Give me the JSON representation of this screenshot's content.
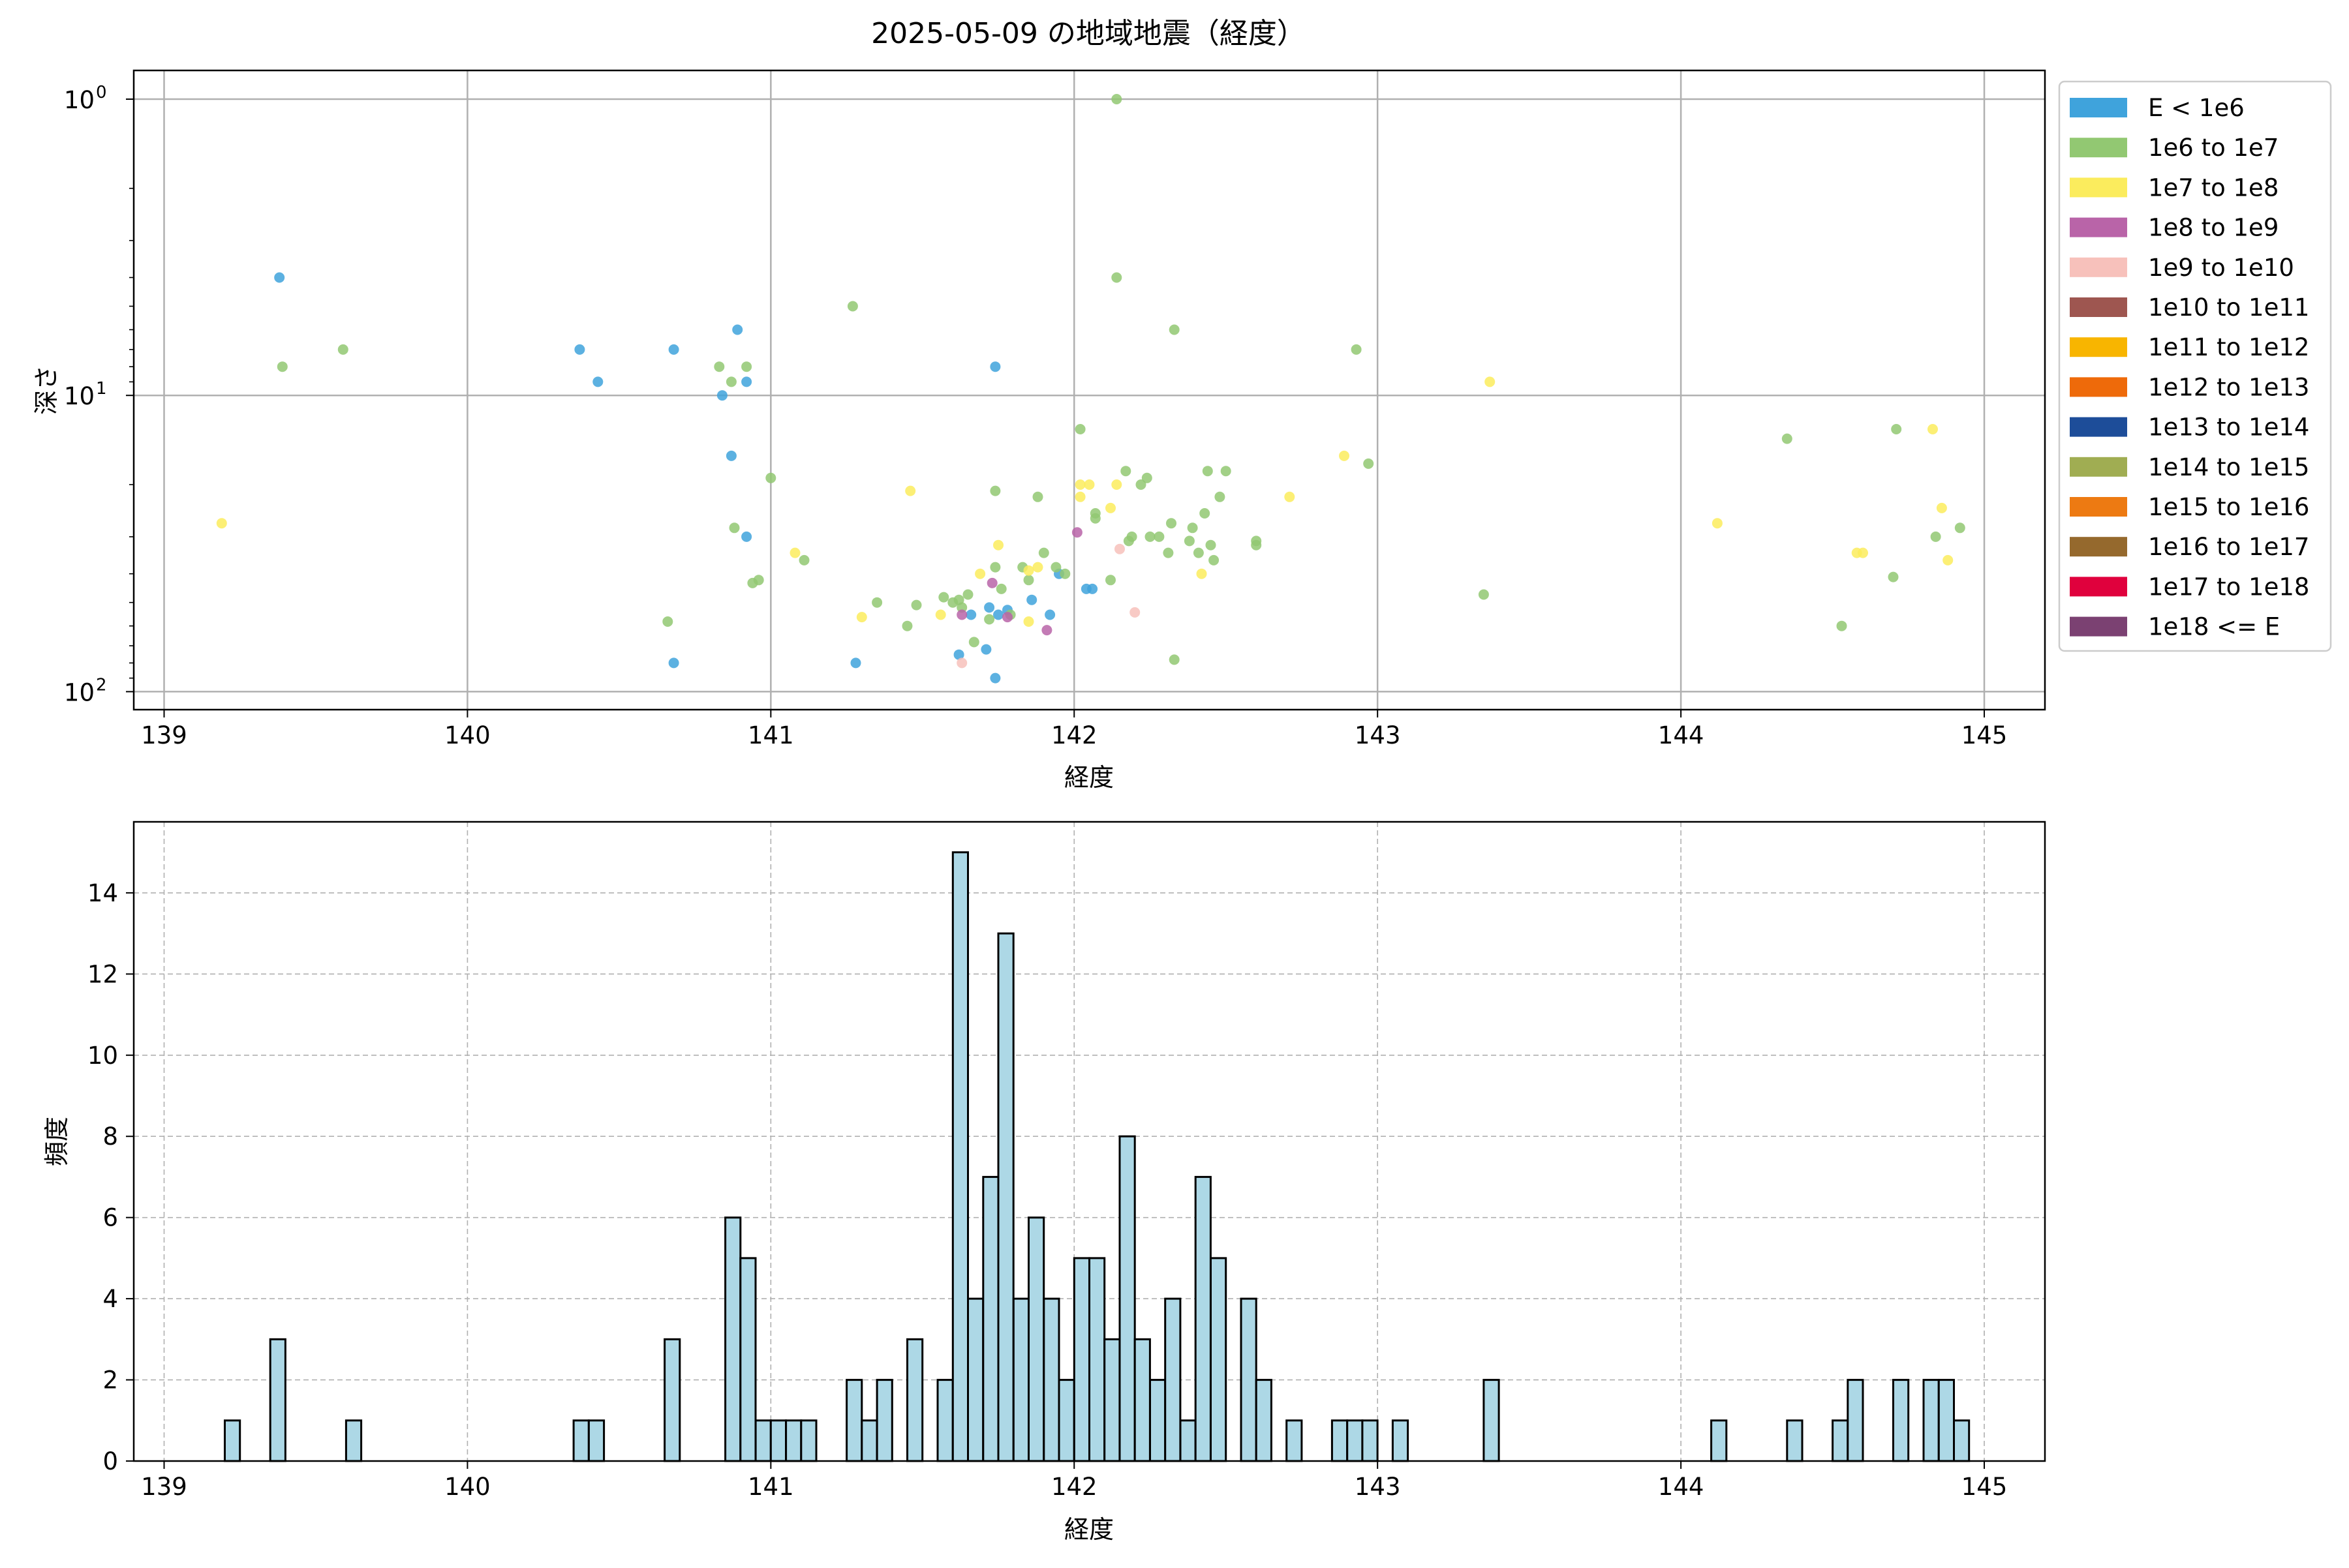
{
  "figure": {
    "title": "2025-05-09 の地域地震（経度）"
  },
  "chart_data": [
    {
      "type": "scatter",
      "title": "2025-05-09 の地域地震（経度）",
      "xlabel": "経度",
      "ylabel": "深さ",
      "xlim": [
        138.9,
        145.2
      ],
      "ylim": [
        115,
        0.8
      ],
      "yscale": "log",
      "yaxis_inverted": true,
      "grid": true,
      "legend_position": "outside-right",
      "x_ticks": [
        "139",
        "140",
        "141",
        "142",
        "143",
        "144",
        "145"
      ],
      "y_ticks": [
        {
          "value": 1,
          "base": "10",
          "exp": "0"
        },
        {
          "value": 10,
          "base": "10",
          "exp": "1"
        },
        {
          "value": 100,
          "base": "10",
          "exp": "2"
        }
      ],
      "legend": [
        {
          "label": "E < 1e6",
          "color": "#3fa3dc"
        },
        {
          "label": "1e6 to 1e7",
          "color": "#92c872"
        },
        {
          "label": "1e7 to 1e8",
          "color": "#fbec5d"
        },
        {
          "label": "1e8 to 1e9",
          "color": "#b964a8"
        },
        {
          "label": "1e9 to 1e10",
          "color": "#f7c1bb"
        },
        {
          "label": "1e10 to 1e11",
          "color": "#9e5650"
        },
        {
          "label": "1e11 to 1e12",
          "color": "#f8b500"
        },
        {
          "label": "1e12 to 1e13",
          "color": "#ee6a0a"
        },
        {
          "label": "1e13 to 1e14",
          "color": "#1d4d99"
        },
        {
          "label": "1e14 to 1e15",
          "color": "#a0ad52"
        },
        {
          "label": "1e15 to 1e16",
          "color": "#ed7a12"
        },
        {
          "label": "1e16 to 1e17",
          "color": "#95692d"
        },
        {
          "label": "1e17 to 1e18",
          "color": "#e0013d"
        },
        {
          "label": "1e18 <= E",
          "color": "#7b4172"
        }
      ],
      "series": [
        {
          "name": "E < 1e6",
          "color": "#3fa3dc",
          "points": [
            [
              139.38,
              4
            ],
            [
              140.37,
              7
            ],
            [
              140.43,
              9
            ],
            [
              140.68,
              7
            ],
            [
              140.89,
              6
            ],
            [
              140.92,
              9
            ],
            [
              140.84,
              10
            ],
            [
              140.87,
              16
            ],
            [
              140.92,
              30
            ],
            [
              140.68,
              80
            ],
            [
              141.28,
              80
            ],
            [
              141.62,
              75
            ],
            [
              141.74,
              90
            ],
            [
              141.74,
              8
            ],
            [
              141.66,
              55
            ],
            [
              141.72,
              52
            ],
            [
              141.78,
              53
            ],
            [
              141.86,
              49
            ],
            [
              141.95,
              40
            ],
            [
              141.92,
              55
            ],
            [
              142.06,
              45
            ],
            [
              142.04,
              45
            ],
            [
              141.75,
              55
            ],
            [
              141.71,
              72
            ]
          ]
        },
        {
          "name": "1e6 to 1e7",
          "color": "#92c872",
          "points": [
            [
              139.39,
              8
            ],
            [
              139.59,
              7
            ],
            [
              140.66,
              58
            ],
            [
              140.83,
              8
            ],
            [
              140.87,
              9
            ],
            [
              140.92,
              8
            ],
            [
              140.88,
              28
            ],
            [
              140.94,
              43
            ],
            [
              140.96,
              42
            ],
            [
              141.0,
              19
            ],
            [
              141.11,
              36
            ],
            [
              141.27,
              5
            ],
            [
              141.35,
              50
            ],
            [
              141.45,
              60
            ],
            [
              141.48,
              51
            ],
            [
              141.57,
              48
            ],
            [
              141.6,
              50
            ],
            [
              141.62,
              49
            ],
            [
              141.63,
              52
            ],
            [
              141.65,
              47
            ],
            [
              141.67,
              68
            ],
            [
              141.72,
              57
            ],
            [
              141.74,
              21
            ],
            [
              141.74,
              38
            ],
            [
              141.76,
              45
            ],
            [
              141.79,
              55
            ],
            [
              141.83,
              38
            ],
            [
              141.85,
              42
            ],
            [
              141.88,
              22
            ],
            [
              141.9,
              34
            ],
            [
              141.94,
              38
            ],
            [
              141.97,
              40
            ],
            [
              142.02,
              13
            ],
            [
              142.07,
              25
            ],
            [
              142.07,
              26
            ],
            [
              142.12,
              42
            ],
            [
              142.14,
              4
            ],
            [
              142.14,
              1
            ],
            [
              142.17,
              18
            ],
            [
              142.18,
              31
            ],
            [
              142.19,
              30
            ],
            [
              142.22,
              20
            ],
            [
              142.24,
              19
            ],
            [
              142.25,
              30
            ],
            [
              142.28,
              30
            ],
            [
              142.31,
              34
            ],
            [
              142.32,
              27
            ],
            [
              142.33,
              6
            ],
            [
              142.33,
              78
            ],
            [
              142.38,
              31
            ],
            [
              142.39,
              28
            ],
            [
              142.41,
              34
            ],
            [
              142.43,
              25
            ],
            [
              142.44,
              18
            ],
            [
              142.45,
              32
            ],
            [
              142.46,
              36
            ],
            [
              142.48,
              22
            ],
            [
              142.5,
              18
            ],
            [
              142.6,
              31
            ],
            [
              142.6,
              32
            ],
            [
              142.93,
              7
            ],
            [
              142.97,
              17
            ],
            [
              143.35,
              47
            ],
            [
              144.35,
              14
            ],
            [
              144.53,
              60
            ],
            [
              144.7,
              41
            ],
            [
              144.71,
              13
            ],
            [
              144.84,
              30
            ],
            [
              144.92,
              28
            ]
          ]
        },
        {
          "name": "1e7 to 1e8",
          "color": "#fbec5d",
          "points": [
            [
              139.19,
              27
            ],
            [
              141.08,
              34
            ],
            [
              141.3,
              56
            ],
            [
              141.46,
              21
            ],
            [
              141.56,
              55
            ],
            [
              141.69,
              40
            ],
            [
              141.75,
              32
            ],
            [
              141.85,
              58
            ],
            [
              141.85,
              39
            ],
            [
              141.88,
              38
            ],
            [
              142.02,
              20
            ],
            [
              142.02,
              22
            ],
            [
              142.05,
              20
            ],
            [
              142.12,
              24
            ],
            [
              142.14,
              20
            ],
            [
              142.42,
              40
            ],
            [
              142.71,
              22
            ],
            [
              142.89,
              16
            ],
            [
              143.37,
              9
            ],
            [
              144.12,
              27
            ],
            [
              144.58,
              34
            ],
            [
              144.6,
              34
            ],
            [
              144.83,
              13
            ],
            [
              144.86,
              24
            ],
            [
              144.88,
              36
            ]
          ]
        },
        {
          "name": "1e8 to 1e9",
          "color": "#b964a8",
          "points": [
            [
              141.73,
              43
            ],
            [
              141.91,
              62
            ],
            [
              141.63,
              55
            ],
            [
              142.01,
              29
            ],
            [
              141.78,
              56
            ]
          ]
        },
        {
          "name": "1e9 to 1e10",
          "color": "#f7c1bb",
          "points": [
            [
              141.63,
              80
            ],
            [
              142.2,
              54
            ],
            [
              142.15,
              33
            ]
          ]
        }
      ]
    },
    {
      "type": "bar",
      "title": "",
      "xlabel": "経度",
      "ylabel": "頻度",
      "xlim": [
        138.9,
        145.2
      ],
      "ylim": [
        0,
        15.75
      ],
      "grid": true,
      "bar_color": "#add8e6",
      "edge_color": "#000000",
      "bin_width": 0.05,
      "x_ticks": [
        "139",
        "140",
        "141",
        "142",
        "143",
        "144",
        "145"
      ],
      "y_ticks": [
        "0",
        "2",
        "4",
        "6",
        "8",
        "10",
        "12",
        "14"
      ],
      "bins": [
        [
          139.2,
          1
        ],
        [
          139.35,
          3
        ],
        [
          139.6,
          1
        ],
        [
          140.35,
          1
        ],
        [
          140.4,
          1
        ],
        [
          140.65,
          3
        ],
        [
          140.85,
          6
        ],
        [
          140.9,
          5
        ],
        [
          140.95,
          1
        ],
        [
          141.0,
          1
        ],
        [
          141.05,
          1
        ],
        [
          141.1,
          1
        ],
        [
          141.25,
          2
        ],
        [
          141.3,
          1
        ],
        [
          141.35,
          2
        ],
        [
          141.45,
          3
        ],
        [
          141.55,
          2
        ],
        [
          141.6,
          15
        ],
        [
          141.65,
          4
        ],
        [
          141.7,
          7
        ],
        [
          141.75,
          13
        ],
        [
          141.8,
          4
        ],
        [
          141.85,
          6
        ],
        [
          141.9,
          4
        ],
        [
          141.95,
          2
        ],
        [
          142.0,
          5
        ],
        [
          142.05,
          5
        ],
        [
          142.1,
          3
        ],
        [
          142.15,
          8
        ],
        [
          142.2,
          3
        ],
        [
          142.25,
          2
        ],
        [
          142.3,
          4
        ],
        [
          142.35,
          1
        ],
        [
          142.4,
          7
        ],
        [
          142.45,
          5
        ],
        [
          142.55,
          4
        ],
        [
          142.6,
          2
        ],
        [
          142.7,
          1
        ],
        [
          142.85,
          1
        ],
        [
          142.9,
          1
        ],
        [
          142.95,
          1
        ],
        [
          143.05,
          1
        ],
        [
          143.35,
          2
        ],
        [
          144.1,
          1
        ],
        [
          144.35,
          1
        ],
        [
          144.5,
          1
        ],
        [
          144.55,
          2
        ],
        [
          144.7,
          2
        ],
        [
          144.8,
          2
        ],
        [
          144.85,
          2
        ],
        [
          144.9,
          1
        ]
      ]
    }
  ]
}
